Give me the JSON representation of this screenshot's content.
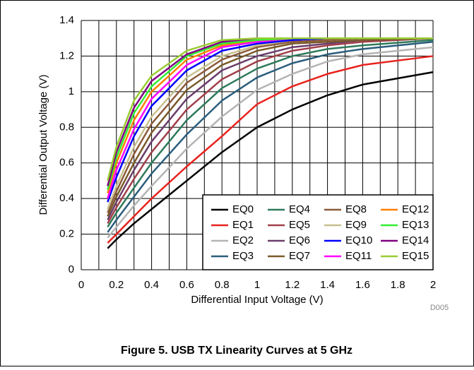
{
  "chart_data": {
    "type": "line",
    "xlabel": "Differential Input Voltage (V)",
    "ylabel": "Differential Output Voltage (V)",
    "caption": "Figure 5. USB TX Linearity Curves at 5 GHz",
    "note": "D005",
    "x": [
      0.15,
      0.2,
      0.3,
      0.4,
      0.6,
      0.8,
      1,
      1.2,
      1.4,
      1.6,
      2
    ],
    "xlim": [
      0,
      2
    ],
    "xticks": [
      0,
      0.2,
      0.4,
      0.6,
      0.8,
      1,
      1.2,
      1.4,
      1.6,
      1.8,
      2
    ],
    "x_minor_ticks": [
      0.1,
      0.3,
      0.5,
      0.7,
      0.9,
      1.1,
      1.3,
      1.5,
      1.7,
      1.9
    ],
    "ylim": [
      0,
      1.4
    ],
    "yticks": [
      0,
      0.2,
      0.4,
      0.6,
      0.8,
      1,
      1.2,
      1.4
    ],
    "grid": true,
    "legend_loc": "lower right",
    "series": [
      {
        "name": "EQ0",
        "color": "#000000",
        "values": [
          0.12,
          0.17,
          0.26,
          0.34,
          0.5,
          0.66,
          0.8,
          0.9,
          0.98,
          1.04,
          1.11
        ]
      },
      {
        "name": "EQ1",
        "color": "#e8231f",
        "values": [
          0.15,
          0.2,
          0.3,
          0.4,
          0.58,
          0.75,
          0.93,
          1.03,
          1.1,
          1.15,
          1.2
        ]
      },
      {
        "name": "EQ2",
        "color": "#b4b4b4",
        "values": [
          0.18,
          0.24,
          0.36,
          0.47,
          0.68,
          0.86,
          1.01,
          1.1,
          1.17,
          1.21,
          1.25
        ]
      },
      {
        "name": "EQ3",
        "color": "#2a5d7c",
        "values": [
          0.21,
          0.28,
          0.41,
          0.54,
          0.76,
          0.95,
          1.08,
          1.16,
          1.21,
          1.24,
          1.28
        ]
      },
      {
        "name": "EQ4",
        "color": "#2e7a5a",
        "values": [
          0.24,
          0.32,
          0.46,
          0.6,
          0.84,
          1.02,
          1.13,
          1.2,
          1.24,
          1.26,
          1.29
        ]
      },
      {
        "name": "EQ5",
        "color": "#a0404a",
        "values": [
          0.26,
          0.35,
          0.51,
          0.66,
          0.9,
          1.07,
          1.17,
          1.23,
          1.26,
          1.28,
          1.3
        ]
      },
      {
        "name": "EQ6",
        "color": "#6b3d6b",
        "values": [
          0.28,
          0.38,
          0.56,
          0.72,
          0.96,
          1.12,
          1.2,
          1.25,
          1.27,
          1.29,
          1.3
        ]
      },
      {
        "name": "EQ7",
        "color": "#7a5a2a",
        "values": [
          0.3,
          0.41,
          0.6,
          0.77,
          1.01,
          1.15,
          1.23,
          1.27,
          1.28,
          1.29,
          1.3
        ]
      },
      {
        "name": "EQ8",
        "color": "#8b5a3a",
        "values": [
          0.32,
          0.44,
          0.65,
          0.82,
          1.05,
          1.18,
          1.25,
          1.28,
          1.29,
          1.3,
          1.3
        ]
      },
      {
        "name": "EQ9",
        "color": "#c8c090",
        "values": [
          0.34,
          0.47,
          0.69,
          0.86,
          1.08,
          1.2,
          1.26,
          1.29,
          1.3,
          1.3,
          1.3
        ]
      },
      {
        "name": "EQ10",
        "color": "#0000ff",
        "values": [
          0.38,
          0.52,
          0.75,
          0.92,
          1.12,
          1.23,
          1.27,
          1.29,
          1.3,
          1.3,
          1.3
        ]
      },
      {
        "name": "EQ11",
        "color": "#ff00ff",
        "values": [
          0.4,
          0.56,
          0.79,
          0.96,
          1.15,
          1.25,
          1.28,
          1.3,
          1.3,
          1.3,
          1.3
        ]
      },
      {
        "name": "EQ12",
        "color": "#ff8000",
        "values": [
          0.43,
          0.6,
          0.84,
          1.0,
          1.18,
          1.26,
          1.29,
          1.3,
          1.3,
          1.3,
          1.3
        ]
      },
      {
        "name": "EQ13",
        "color": "#33ee33",
        "values": [
          0.45,
          0.63,
          0.88,
          1.03,
          1.2,
          1.27,
          1.29,
          1.3,
          1.3,
          1.3,
          1.3
        ]
      },
      {
        "name": "EQ14",
        "color": "#800080",
        "values": [
          0.47,
          0.66,
          0.91,
          1.06,
          1.21,
          1.28,
          1.3,
          1.3,
          1.3,
          1.3,
          1.3
        ]
      },
      {
        "name": "EQ15",
        "color": "#99cc33",
        "values": [
          0.5,
          0.69,
          0.95,
          1.09,
          1.23,
          1.29,
          1.3,
          1.3,
          1.3,
          1.3,
          1.3
        ]
      }
    ]
  }
}
